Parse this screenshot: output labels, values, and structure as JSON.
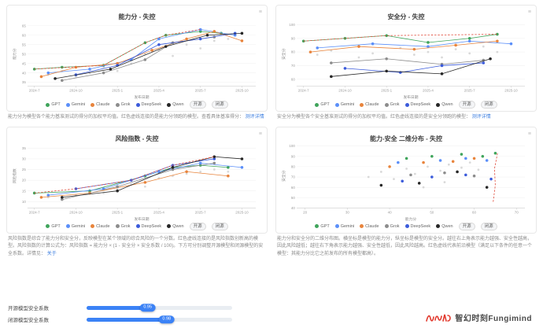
{
  "page": {
    "background": "#ffffff"
  },
  "legend": {
    "models": [
      {
        "name": "GPT",
        "color": "#3fa45b"
      },
      {
        "name": "Gemini",
        "color": "#5b8ff9"
      },
      {
        "name": "Claude",
        "color": "#e8843c"
      },
      {
        "name": "Grok",
        "color": "#8c8c8c"
      },
      {
        "name": "DeepSeek",
        "color": "#3b5bdb"
      },
      {
        "name": "Qwen",
        "color": "#262626"
      }
    ],
    "toggles": [
      "开源",
      "闭源"
    ],
    "frontier_color": "#e04a3a"
  },
  "panels": [
    {
      "title": "能力分 - 失控",
      "desc_text": "能力分为模型各个能力基准测试的得分的加权平均值。红色虚线连接的是能力分领跑的模型。查看具体基准得分：",
      "desc_link": "测评详情"
    },
    {
      "title": "安全分 - 失控",
      "desc_text": "安全分为模型各个安全基准测试的得分的加权平均值。红色虚线连接的是安全分领跑的模型：",
      "desc_link": "测评详情"
    },
    {
      "title": "风险指数 - 失控",
      "desc_text": "风险指数是综合了能力分和安全分，反映模型在某个领域的综合风险的一个分数。红色虚线连接的是风险指数创新高的模型。风险指数的计算公式为：风险指数 = 能力分 × (1 - 安全分 × 安全系数 / 100)。下方可分别调整开源模型和闭源模型的安全系数。详情见：",
      "desc_link": "关于"
    },
    {
      "title": "能力-安全 二维分布 - 失控",
      "desc_text": "能力分和安全分的二维分布图。横坐标是模型的能力分，纵坐标是模型的安全分。越往右上角表示能力越强、安全性越高，因此风险越低；越往右下角表示能力越强、安全性越低，因此风险越高。红色虚线代表前沿模型（满足以下条件的任意一个模型：其能力分比它之前发布的所有模型都高）。",
      "desc_link": ""
    }
  ],
  "sliders": {
    "open": {
      "label": "开源模型安全系数",
      "value": "0.95",
      "percent": 42
    },
    "closed": {
      "label": "闭源模型安全系数",
      "value": "0.98",
      "percent": 55
    }
  },
  "watermark": {
    "brand": "智幻时刻Fungimind"
  },
  "chart_data": [
    {
      "type": "line",
      "title": "能力分 - 失控",
      "xlabel": "发布日期",
      "ylabel": "能力分",
      "xlim": [
        -0.5,
        16
      ],
      "ylim": [
        33,
        67
      ],
      "xticks": {
        "values": [
          0,
          3,
          6,
          9,
          12,
          15
        ],
        "labels": [
          "2024-7",
          "2024-10",
          "2025-1",
          "2025-4",
          "2025-7",
          "2025-10"
        ]
      },
      "yticks": [
        35,
        40,
        45,
        50,
        55,
        60,
        65
      ],
      "faded_points": [
        [
          1,
          39
        ],
        [
          2,
          41
        ],
        [
          3,
          38
        ],
        [
          4,
          40
        ],
        [
          5,
          43
        ],
        [
          6,
          41
        ],
        [
          7,
          45
        ],
        [
          8,
          50
        ],
        [
          9,
          52
        ],
        [
          10,
          49
        ],
        [
          11,
          55
        ],
        [
          12,
          53
        ],
        [
          13,
          57
        ],
        [
          14,
          58
        ]
      ],
      "series": [
        {
          "name": "GPT",
          "points": [
            [
              0,
              42
            ],
            [
              2,
              43
            ],
            [
              5,
              44
            ],
            [
              8,
              56
            ],
            [
              9.5,
              60
            ],
            [
              12,
              62
            ],
            [
              13.5,
              61
            ]
          ]
        },
        {
          "name": "Gemini",
          "points": [
            [
              1,
              40
            ],
            [
              4,
              42
            ],
            [
              7,
              47
            ],
            [
              9,
              58
            ],
            [
              12,
              63
            ],
            [
              14.5,
              60
            ]
          ]
        },
        {
          "name": "Claude",
          "points": [
            [
              0.5,
              38
            ],
            [
              3,
              43
            ],
            [
              6,
              45
            ],
            [
              8.5,
              52
            ],
            [
              11,
              58
            ],
            [
              13,
              62
            ],
            [
              15,
              57
            ]
          ]
        },
        {
          "name": "Grok",
          "points": [
            [
              2,
              36
            ],
            [
              5,
              40
            ],
            [
              8,
              47
            ],
            [
              10,
              56
            ],
            [
              13,
              59
            ]
          ]
        },
        {
          "name": "DeepSeek",
          "points": [
            [
              3,
              39
            ],
            [
              6,
              44
            ],
            [
              9,
              55
            ],
            [
              12,
              58
            ],
            [
              14.5,
              61
            ]
          ]
        },
        {
          "name": "Qwen",
          "points": [
            [
              1.5,
              37
            ],
            [
              5.5,
              42
            ],
            [
              9.5,
              54
            ],
            [
              12.5,
              60
            ],
            [
              15,
              61
            ]
          ]
        },
        {
          "name": "frontier",
          "color": "#e04a3a",
          "dashed": true,
          "markers": false,
          "points": [
            [
              0,
              42
            ],
            [
              5,
              44
            ],
            [
              8,
              56
            ],
            [
              9.5,
              60
            ],
            [
              12,
              63
            ]
          ]
        }
      ]
    },
    {
      "type": "line",
      "title": "安全分 - 失控",
      "xlabel": "发布日期",
      "ylabel": "安全分",
      "xlim": [
        -0.5,
        16
      ],
      "ylim": [
        55,
        102
      ],
      "xticks": {
        "values": [
          0,
          3,
          6,
          9,
          12,
          15
        ],
        "labels": [
          "2024-7",
          "2024-10",
          "2025-1",
          "2025-4",
          "2025-7",
          "2025-10"
        ]
      },
      "yticks": [
        60,
        70,
        80,
        90,
        100
      ],
      "faded_points": [
        [
          1,
          78
        ],
        [
          2,
          81
        ],
        [
          4,
          76
        ],
        [
          5,
          79
        ],
        [
          7,
          83
        ],
        [
          8,
          78
        ],
        [
          9,
          80
        ],
        [
          10,
          76
        ],
        [
          11,
          82
        ],
        [
          12,
          79
        ],
        [
          13,
          84
        ],
        [
          14,
          80
        ]
      ],
      "series": [
        {
          "name": "GPT",
          "points": [
            [
              0,
              88
            ],
            [
              3,
              90
            ],
            [
              6,
              92
            ],
            [
              9,
              87
            ],
            [
              12,
              90
            ],
            [
              14,
              93
            ]
          ]
        },
        {
          "name": "Gemini",
          "points": [
            [
              1,
              83
            ],
            [
              5,
              86
            ],
            [
              9,
              84
            ],
            [
              12,
              88
            ],
            [
              15,
              86
            ]
          ]
        },
        {
          "name": "Claude",
          "points": [
            [
              0.5,
              80
            ],
            [
              4,
              84
            ],
            [
              8,
              82
            ],
            [
              11,
              85
            ],
            [
              14,
              88
            ]
          ]
        },
        {
          "name": "Grok",
          "points": [
            [
              2,
              72
            ],
            [
              6,
              75
            ],
            [
              10,
              71
            ],
            [
              13,
              74
            ]
          ]
        },
        {
          "name": "DeepSeek",
          "points": [
            [
              3,
              68
            ],
            [
              7,
              65
            ],
            [
              10,
              70
            ],
            [
              13,
              72
            ]
          ]
        },
        {
          "name": "Qwen",
          "points": [
            [
              2,
              62
            ],
            [
              6,
              66
            ],
            [
              10,
              64
            ],
            [
              13.5,
              75
            ]
          ]
        },
        {
          "name": "frontier",
          "color": "#e04a3a",
          "dashed": true,
          "markers": false,
          "points": [
            [
              0,
              88
            ],
            [
              3,
              90
            ],
            [
              6,
              92
            ],
            [
              14,
              93
            ]
          ]
        }
      ]
    },
    {
      "type": "line",
      "title": "风险指数 - 失控",
      "xlabel": "发布日期",
      "ylabel": "风险指数",
      "xlim": [
        -0.5,
        16
      ],
      "ylim": [
        7,
        37
      ],
      "xticks": {
        "values": [
          0,
          3,
          6,
          9,
          12,
          15
        ],
        "labels": [
          "2024-7",
          "2024-10",
          "2025-1",
          "2025-4",
          "2025-7",
          "2025-10"
        ]
      },
      "yticks": [
        10,
        15,
        20,
        25,
        30,
        35
      ],
      "faded_points": [
        [
          1,
          12
        ],
        [
          3,
          13
        ],
        [
          5,
          14
        ],
        [
          6,
          16
        ],
        [
          7,
          18
        ],
        [
          8,
          17
        ],
        [
          9,
          21
        ],
        [
          10,
          22
        ],
        [
          11,
          23
        ],
        [
          12,
          24
        ],
        [
          13,
          25
        ],
        [
          14,
          24
        ]
      ],
      "series": [
        {
          "name": "GPT",
          "points": [
            [
              0,
              14
            ],
            [
              4,
              15
            ],
            [
              8,
              22
            ],
            [
              10,
              26
            ],
            [
              12,
              27
            ],
            [
              14,
              26
            ]
          ]
        },
        {
          "name": "Gemini",
          "points": [
            [
              1,
              13
            ],
            [
              5,
              16
            ],
            [
              9,
              24
            ],
            [
              12,
              28
            ],
            [
              15,
              26
            ]
          ]
        },
        {
          "name": "Claude",
          "points": [
            [
              0.5,
              12
            ],
            [
              4,
              14
            ],
            [
              8,
              19
            ],
            [
              11,
              24
            ],
            [
              14,
              22
            ]
          ]
        },
        {
          "name": "Grok",
          "points": [
            [
              2,
              11
            ],
            [
              6,
              17
            ],
            [
              10,
              25
            ],
            [
              13,
              28
            ]
          ]
        },
        {
          "name": "DeepSeek",
          "points": [
            [
              3,
              16
            ],
            [
              7,
              20
            ],
            [
              10,
              27
            ],
            [
              13,
              30
            ]
          ]
        },
        {
          "name": "Qwen",
          "points": [
            [
              2,
              12
            ],
            [
              6,
              15
            ],
            [
              10,
              26
            ],
            [
              13,
              31
            ],
            [
              15,
              30
            ]
          ]
        },
        {
          "name": "frontier",
          "color": "#e04a3a",
          "dashed": true,
          "markers": false,
          "points": [
            [
              0,
              14
            ],
            [
              3,
              16
            ],
            [
              7,
              20
            ],
            [
              10,
              27
            ],
            [
              13,
              31
            ]
          ]
        }
      ]
    },
    {
      "type": "scatter",
      "title": "能力-安全 二维分布 - 失控",
      "xlabel": "能力分",
      "ylabel": "安全分",
      "xlim": [
        18,
        72
      ],
      "ylim": [
        40,
        102
      ],
      "xticks": {
        "values": [
          20,
          30,
          40,
          50,
          60,
          70
        ],
        "labels": [
          "20",
          "30",
          "40",
          "50",
          "60",
          "70"
        ]
      },
      "yticks": [
        40,
        50,
        60,
        70,
        80,
        90,
        100
      ],
      "faded_points": [
        [
          35,
          70
        ],
        [
          38,
          75
        ],
        [
          41,
          68
        ],
        [
          44,
          78
        ],
        [
          46,
          73
        ],
        [
          49,
          80
        ],
        [
          52,
          76
        ],
        [
          54,
          82
        ],
        [
          57,
          79
        ],
        [
          59,
          84
        ],
        [
          61,
          77
        ],
        [
          48,
          60
        ],
        [
          53,
          65
        ]
      ],
      "series": [
        {
          "name": "GPT",
          "line": false,
          "points": [
            [
              44,
              88
            ],
            [
              50,
              90
            ],
            [
              57,
              92
            ],
            [
              62,
              90
            ],
            [
              65,
              93
            ]
          ]
        },
        {
          "name": "Gemini",
          "line": false,
          "points": [
            [
              42,
              84
            ],
            [
              52,
              86
            ],
            [
              58,
              88
            ],
            [
              63,
              86
            ]
          ]
        },
        {
          "name": "Claude",
          "line": false,
          "points": [
            [
              40,
              80
            ],
            [
              48,
              84
            ],
            [
              55,
              85
            ],
            [
              60,
              88
            ]
          ]
        },
        {
          "name": "Grok",
          "line": false,
          "points": [
            [
              45,
              72
            ],
            [
              53,
              74
            ],
            [
              60,
              71
            ]
          ]
        },
        {
          "name": "DeepSeek",
          "line": false,
          "points": [
            [
              43,
              66
            ],
            [
              50,
              70
            ],
            [
              58,
              72
            ],
            [
              64,
              68
            ]
          ]
        },
        {
          "name": "Qwen",
          "line": false,
          "points": [
            [
              38,
              62
            ],
            [
              47,
              64
            ],
            [
              56,
              75
            ],
            [
              63,
              60
            ]
          ]
        },
        {
          "name": "frontier",
          "color": "#e04a3a",
          "dashed": true,
          "markers": false,
          "points": [
            [
              64.5,
              46
            ],
            [
              65,
              62
            ],
            [
              64.8,
              78
            ],
            [
              65.5,
              93
            ]
          ]
        }
      ]
    }
  ]
}
